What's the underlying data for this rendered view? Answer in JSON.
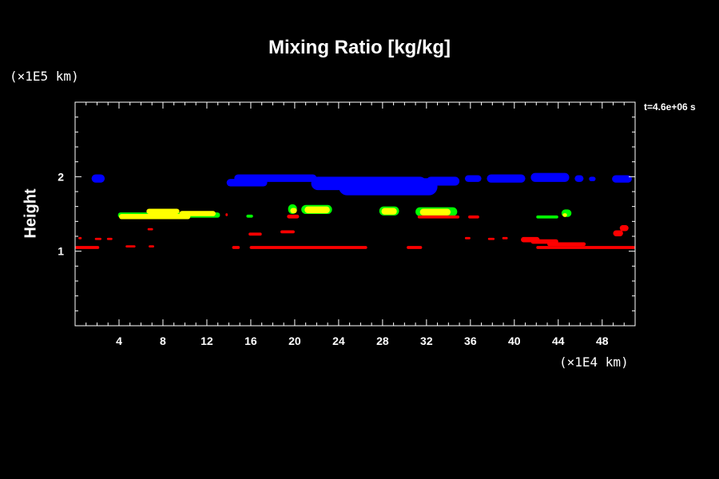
{
  "chart_data": {
    "type": "heatmap",
    "title": "Mixing Ratio [kg/kg]",
    "ylabel": "Height",
    "yunit": "(×1E5 km)",
    "xunit": "(×1E4 km)",
    "annotation": "t=4.6e+06 s",
    "xlim": [
      0,
      51
    ],
    "ylim": [
      0,
      3
    ],
    "xticks": [
      4,
      8,
      12,
      16,
      20,
      24,
      28,
      32,
      36,
      40,
      44,
      48
    ],
    "yticks": [
      1,
      2
    ],
    "series": [
      {
        "color": "#0000ff",
        "blobs": [
          [
            1.5,
            2.03,
            2.7,
            1.92
          ],
          [
            13.8,
            1.97,
            17.5,
            1.87
          ],
          [
            14.5,
            2.03,
            22.0,
            1.93
          ],
          [
            21.5,
            2.0,
            32.0,
            1.82
          ],
          [
            24.0,
            1.98,
            33.0,
            1.75
          ],
          [
            32.0,
            2.0,
            35.0,
            1.88
          ],
          [
            35.5,
            2.02,
            37.0,
            1.93
          ],
          [
            37.5,
            2.03,
            41.0,
            1.92
          ],
          [
            41.5,
            2.05,
            45.0,
            1.93
          ],
          [
            45.5,
            2.02,
            46.3,
            1.93
          ],
          [
            46.8,
            2.0,
            47.4,
            1.94
          ],
          [
            48.9,
            2.02,
            50.7,
            1.92
          ]
        ]
      },
      {
        "color": "#00ff00",
        "blobs": [
          [
            3.9,
            1.52,
            13.2,
            1.45
          ],
          [
            15.6,
            1.49,
            16.2,
            1.45
          ],
          [
            19.4,
            1.63,
            20.2,
            1.5
          ],
          [
            20.6,
            1.62,
            23.4,
            1.5
          ],
          [
            27.7,
            1.6,
            29.5,
            1.48
          ],
          [
            31.0,
            1.59,
            34.8,
            1.47
          ],
          [
            42.0,
            1.48,
            44.0,
            1.44
          ],
          [
            44.3,
            1.56,
            45.2,
            1.46
          ]
        ]
      },
      {
        "color": "#ffff00",
        "blobs": [
          [
            4.0,
            1.5,
            10.5,
            1.43
          ],
          [
            6.5,
            1.57,
            9.5,
            1.5
          ],
          [
            9.5,
            1.54,
            12.8,
            1.47
          ],
          [
            20.9,
            1.6,
            23.2,
            1.51
          ],
          [
            19.6,
            1.58,
            20.2,
            1.51
          ],
          [
            27.9,
            1.58,
            29.3,
            1.49
          ],
          [
            31.4,
            1.57,
            34.2,
            1.48
          ],
          [
            44.4,
            1.51,
            44.8,
            1.46
          ]
        ]
      },
      {
        "color": "#ff0000",
        "blobs": [
          [
            0.0,
            1.07,
            2.2,
            1.03
          ],
          [
            14.3,
            1.07,
            15.0,
            1.03
          ],
          [
            15.9,
            1.07,
            26.6,
            1.03
          ],
          [
            30.2,
            1.07,
            31.6,
            1.03
          ],
          [
            42.0,
            1.07,
            51.0,
            1.03
          ],
          [
            15.8,
            1.25,
            17.0,
            1.21
          ],
          [
            18.7,
            1.28,
            20.0,
            1.24
          ],
          [
            40.6,
            1.19,
            42.3,
            1.12
          ],
          [
            41.5,
            1.16,
            44.0,
            1.1
          ],
          [
            43.0,
            1.12,
            46.5,
            1.07
          ],
          [
            49.6,
            1.35,
            50.4,
            1.27
          ],
          [
            49.0,
            1.28,
            49.9,
            1.2
          ],
          [
            0.3,
            1.19,
            0.6,
            1.16
          ],
          [
            1.8,
            1.18,
            2.4,
            1.15
          ],
          [
            2.9,
            1.18,
            3.4,
            1.15
          ],
          [
            4.6,
            1.08,
            5.5,
            1.05
          ],
          [
            6.6,
            1.31,
            7.1,
            1.28
          ],
          [
            6.7,
            1.08,
            7.2,
            1.05
          ],
          [
            19.3,
            1.49,
            20.4,
            1.44
          ],
          [
            31.2,
            1.48,
            35.0,
            1.44
          ],
          [
            35.8,
            1.48,
            36.8,
            1.44
          ],
          [
            13.7,
            1.51,
            13.9,
            1.47
          ],
          [
            37.6,
            1.18,
            38.2,
            1.15
          ],
          [
            38.9,
            1.19,
            39.4,
            1.16
          ],
          [
            35.5,
            1.19,
            36.0,
            1.16
          ]
        ]
      }
    ]
  }
}
